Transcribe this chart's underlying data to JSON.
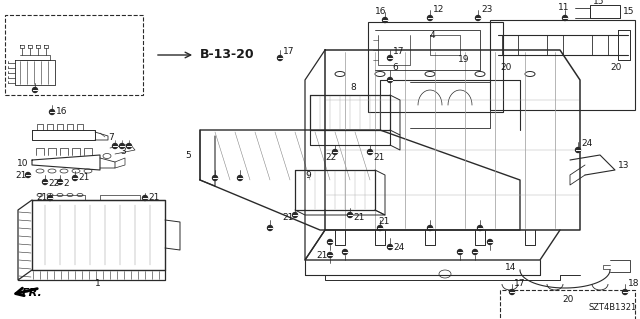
{
  "background_color": "#ffffff",
  "diagram_code": "SZT4B1321",
  "ref_label": "B-13-20",
  "line_color": "#2a2a2a",
  "text_color": "#1a1a1a",
  "label_fontsize": 6.5,
  "fig_width": 6.4,
  "fig_height": 3.19,
  "dpi": 100
}
